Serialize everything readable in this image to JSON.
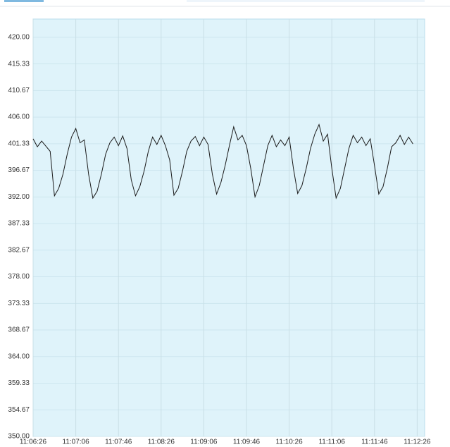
{
  "chart_data": {
    "type": "line",
    "x": [
      "11:06:26",
      "11:06:30",
      "11:06:34",
      "11:06:38",
      "11:06:42",
      "11:06:46",
      "11:06:50",
      "11:06:54",
      "11:06:58",
      "11:07:02",
      "11:07:06",
      "11:07:10",
      "11:07:14",
      "11:07:18",
      "11:07:22",
      "11:07:26",
      "11:07:30",
      "11:07:34",
      "11:07:38",
      "11:07:42",
      "11:07:46",
      "11:07:50",
      "11:07:54",
      "11:07:58",
      "11:08:02",
      "11:08:06",
      "11:08:10",
      "11:08:14",
      "11:08:18",
      "11:08:22",
      "11:08:26",
      "11:08:30",
      "11:08:34",
      "11:08:38",
      "11:08:42",
      "11:08:46",
      "11:08:50",
      "11:08:54",
      "11:08:58",
      "11:09:02",
      "11:09:06",
      "11:09:10",
      "11:09:14",
      "11:09:18",
      "11:09:22",
      "11:09:26",
      "11:09:30",
      "11:09:34",
      "11:09:38",
      "11:09:42",
      "11:09:46",
      "11:09:50",
      "11:09:54",
      "11:09:58",
      "11:10:02",
      "11:10:06",
      "11:10:10",
      "11:10:14",
      "11:10:18",
      "11:10:22",
      "11:10:26",
      "11:10:30",
      "11:10:34",
      "11:10:38",
      "11:10:42",
      "11:10:46",
      "11:10:50",
      "11:10:54",
      "11:10:58",
      "11:11:02",
      "11:11:06",
      "11:11:10",
      "11:11:14",
      "11:11:18",
      "11:11:22",
      "11:11:26",
      "11:11:30",
      "11:11:34",
      "11:11:38",
      "11:11:42",
      "11:11:46",
      "11:11:50",
      "11:11:54",
      "11:11:58",
      "11:12:02",
      "11:12:06",
      "11:12:10",
      "11:12:14",
      "11:12:18",
      "11:12:22"
    ],
    "series": [
      {
        "color": "#1a1a1a",
        "values": [
          402.2,
          400.8,
          401.8,
          400.9,
          400.0,
          392.2,
          393.5,
          396.0,
          399.5,
          402.5,
          404.0,
          401.5,
          402.0,
          396.0,
          391.8,
          393.0,
          396.0,
          399.5,
          401.5,
          402.5,
          401.0,
          402.7,
          400.5,
          395.0,
          392.2,
          393.8,
          396.5,
          400.0,
          402.5,
          401.2,
          402.8,
          401.0,
          398.5,
          392.3,
          393.5,
          396.5,
          400.0,
          401.8,
          402.6,
          401.0,
          402.5,
          401.2,
          396.0,
          392.5,
          394.5,
          397.5,
          401.0,
          404.3,
          402.0,
          402.8,
          401.0,
          397.0,
          392.0,
          394.0,
          397.5,
          401.0,
          402.8,
          400.8,
          402.0,
          401.0,
          402.5,
          397.0,
          392.6,
          394.0,
          397.0,
          400.5,
          403.0,
          404.7,
          401.8,
          403.0,
          397.0,
          391.8,
          393.5,
          397.0,
          400.5,
          402.8,
          401.5,
          402.5,
          401.0,
          402.2,
          397.5,
          392.5,
          393.8,
          397.0,
          400.8,
          401.5,
          402.8,
          401.2,
          402.5,
          401.3
        ]
      }
    ],
    "xlim": [
      "11:06:26",
      "11:12:33"
    ],
    "xticks": [
      "11:06:26",
      "11:07:06",
      "11:07:46",
      "11:08:26",
      "11:09:06",
      "11:09:46",
      "11:10:26",
      "11:11:06",
      "11:11:46",
      "11:12:26"
    ],
    "ylim": [
      350,
      423.2
    ],
    "yticks": [
      {
        "value": 350,
        "label": "350.00"
      },
      {
        "value": 354.67,
        "label": "354.67"
      },
      {
        "value": 359.33,
        "label": "359.33"
      },
      {
        "value": 364,
        "label": "364.00"
      },
      {
        "value": 368.67,
        "label": "368.67"
      },
      {
        "value": 373.33,
        "label": "373.33"
      },
      {
        "value": 378,
        "label": "378.00"
      },
      {
        "value": 382.67,
        "label": "382.67"
      },
      {
        "value": 387.33,
        "label": "387.33"
      },
      {
        "value": 392,
        "label": "392.00"
      },
      {
        "value": 396.67,
        "label": "396.67"
      },
      {
        "value": 401.33,
        "label": "401.33"
      },
      {
        "value": 406,
        "label": "406.00"
      },
      {
        "value": 410.67,
        "label": "410.67"
      },
      {
        "value": 415.33,
        "label": "415.33"
      },
      {
        "value": 420,
        "label": "420.00"
      }
    ],
    "grid": true,
    "background": "#dff3fa"
  }
}
